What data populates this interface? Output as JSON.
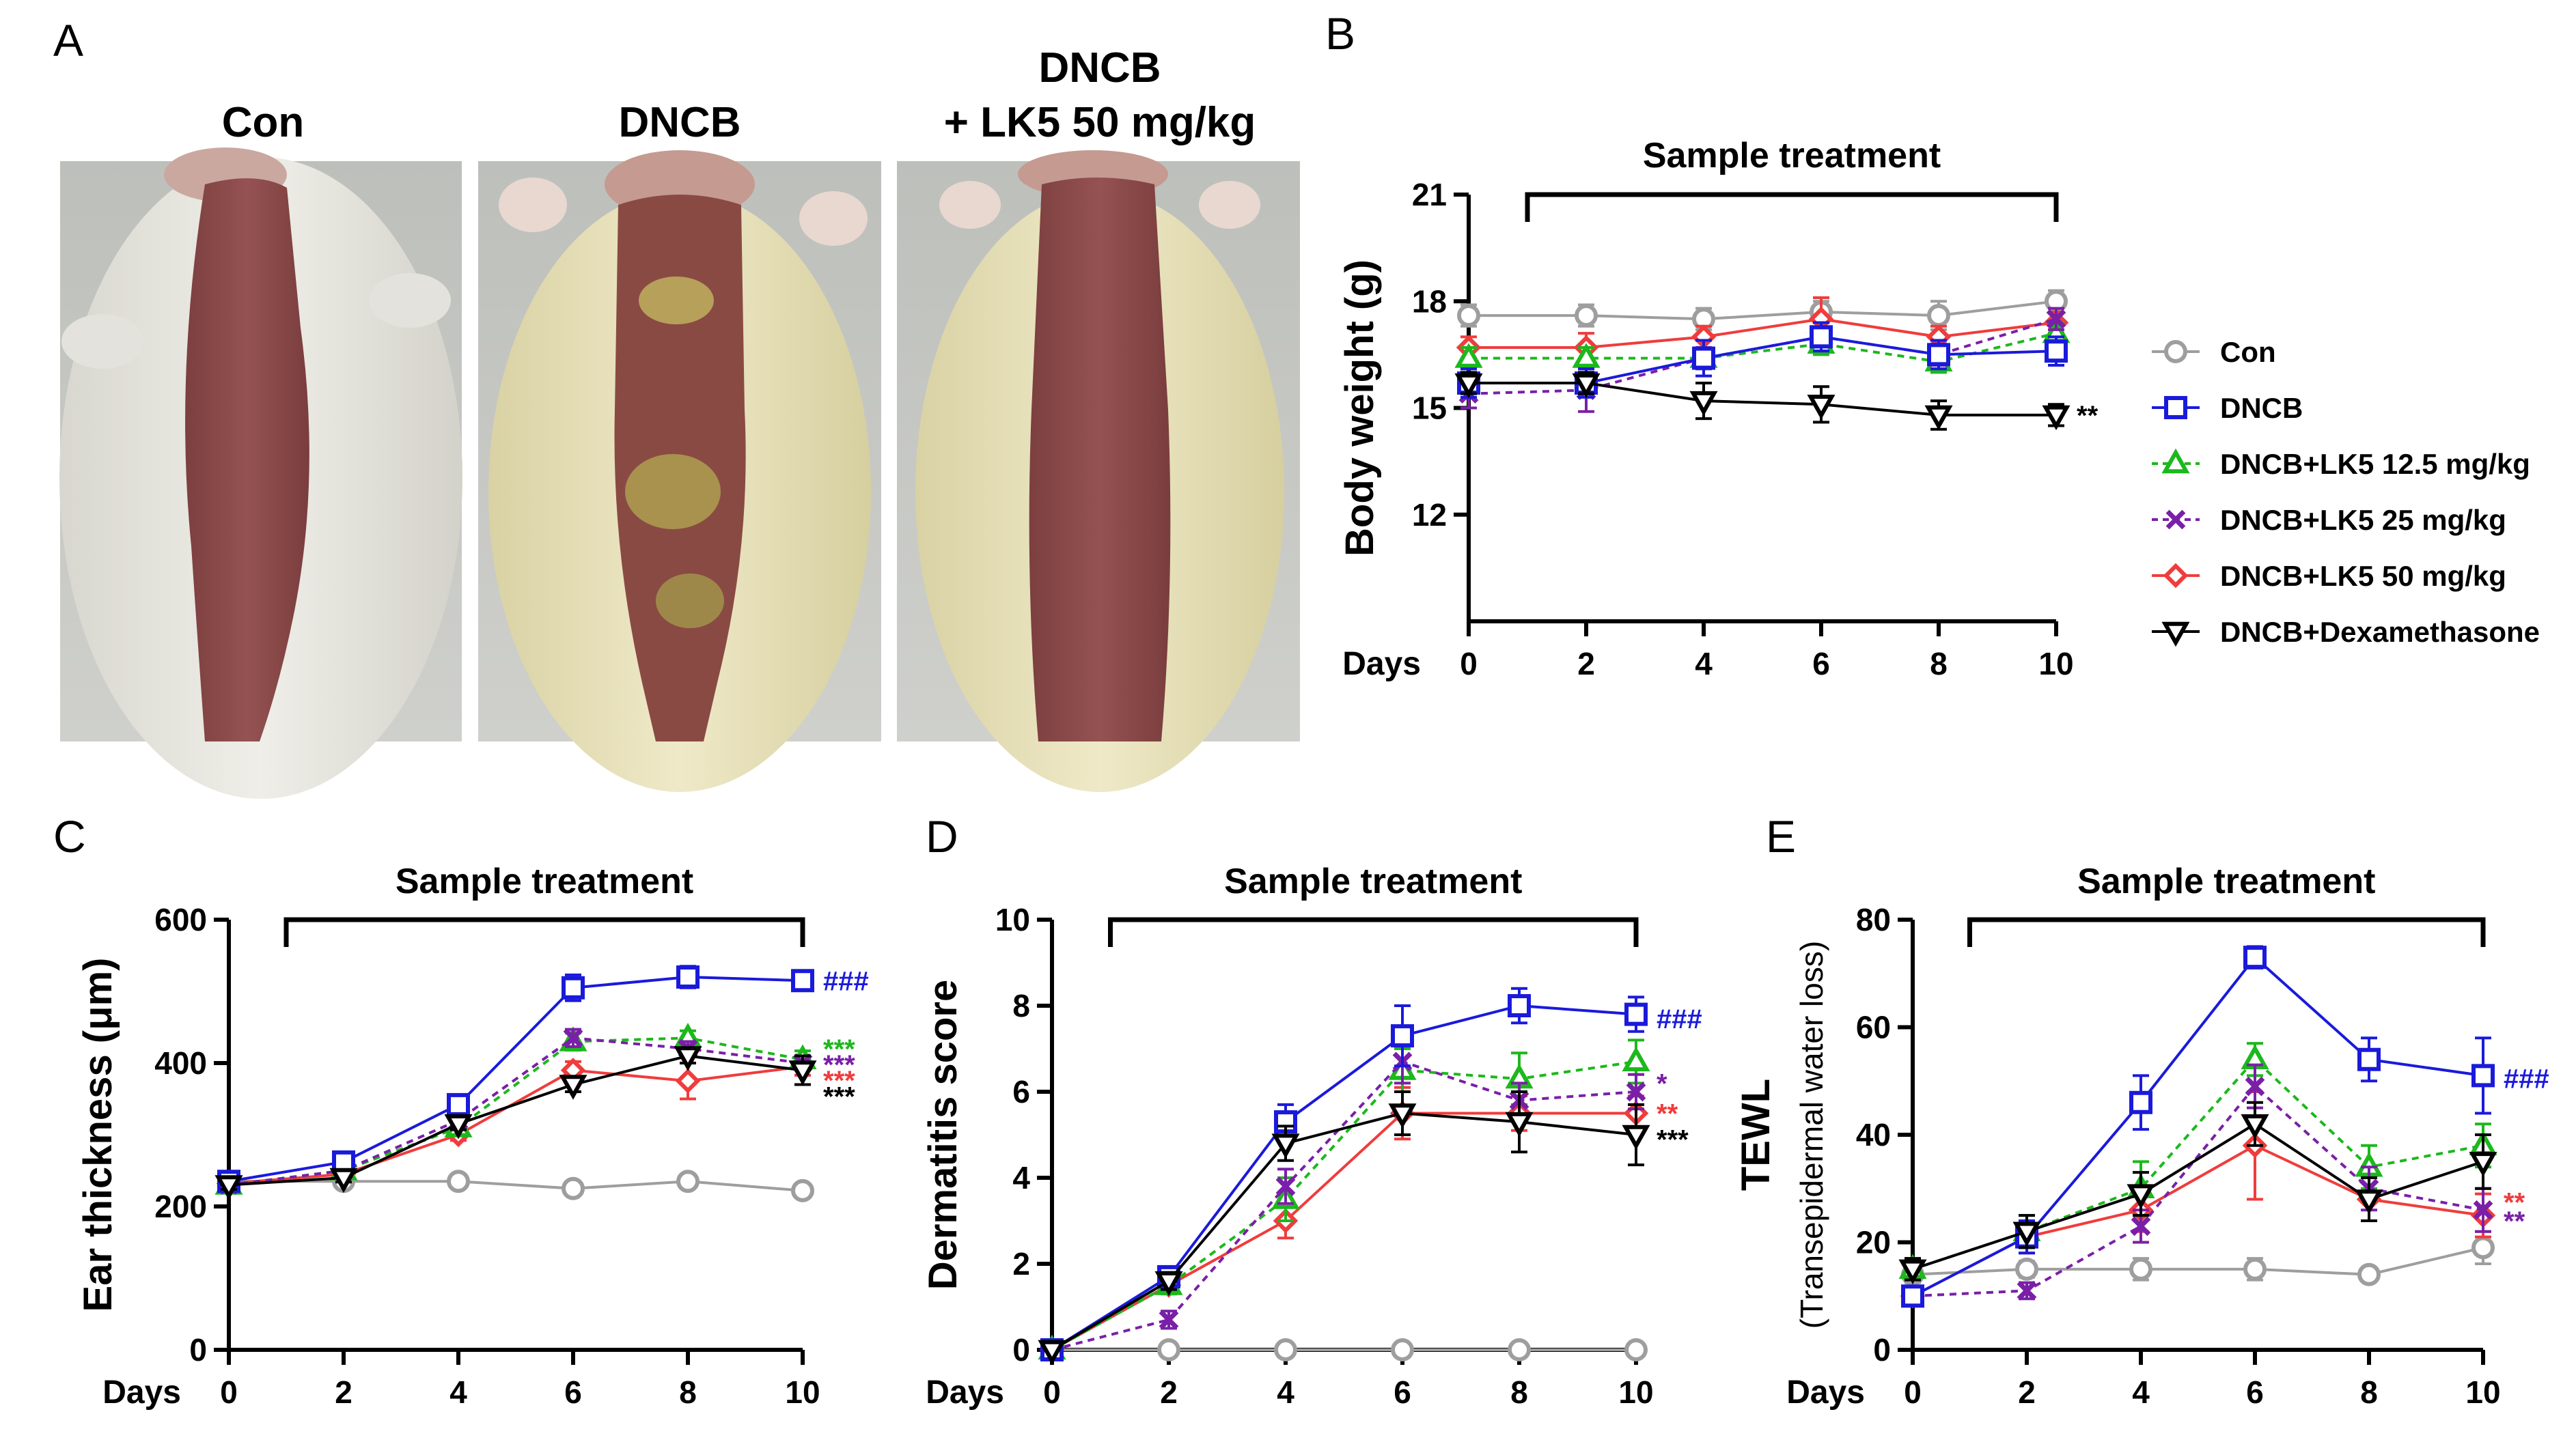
{
  "panel_labels": {
    "A": "A",
    "B": "B",
    "C": "C",
    "D": "D",
    "E": "E"
  },
  "photos": {
    "con_title": "Con",
    "dncb_title": "DNCB",
    "lk5_title_line1": "DNCB",
    "lk5_title_line2": "+ LK5 50 mg/kg"
  },
  "colors": {
    "con": "#9e9e9e",
    "dncb": "#1a1adb",
    "lk5_12": "#1cb81c",
    "lk5_25": "#7a1fa8",
    "lk5_50": "#f03c3c",
    "dexa": "#000000"
  },
  "legend": {
    "items": [
      {
        "key": "con",
        "label": "Con",
        "marker": "circle",
        "dash": false
      },
      {
        "key": "dncb",
        "label": "DNCB",
        "marker": "square",
        "dash": false
      },
      {
        "key": "lk5_12",
        "label": "DNCB+LK5 12.5 mg/kg",
        "marker": "triangle",
        "dash": true
      },
      {
        "key": "lk5_25",
        "label": "DNCB+LK5 25 mg/kg",
        "marker": "x",
        "dash": true
      },
      {
        "key": "lk5_50",
        "label": "DNCB+LK5 50 mg/kg",
        "marker": "diamond",
        "dash": false
      },
      {
        "key": "dexa",
        "label": "DNCB+Dexamethasone",
        "marker": "triangle-down",
        "dash": false
      }
    ]
  },
  "chart_data": [
    {
      "id": "B",
      "type": "line",
      "ylabel": "Body weight (g)",
      "xlabel": "Days",
      "treatment_label": "Sample treatment",
      "treatment_range": [
        1,
        10
      ],
      "xlim": [
        0,
        10
      ],
      "ylim": [
        9,
        21
      ],
      "yticks": [
        12,
        15,
        18,
        21
      ],
      "x": [
        0,
        2,
        4,
        6,
        8,
        10
      ],
      "xtick_labels": [
        "0",
        "2",
        "4",
        "6",
        "8",
        "10"
      ],
      "series": [
        {
          "key": "con",
          "name": "Con",
          "values": [
            17.6,
            17.6,
            17.5,
            17.7,
            17.6,
            18.0
          ],
          "err": [
            0.3,
            0.3,
            0.3,
            0.3,
            0.4,
            0.3
          ]
        },
        {
          "key": "lk5_50",
          "name": "DNCB+LK5 50 mg/kg",
          "values": [
            16.7,
            16.7,
            17.0,
            17.5,
            17.0,
            17.4
          ],
          "err": [
            0.3,
            0.4,
            0.3,
            0.6,
            0.3,
            0.3
          ]
        },
        {
          "key": "lk5_12",
          "name": "DNCB+LK5 12.5 mg/kg",
          "values": [
            16.4,
            16.4,
            16.4,
            16.8,
            16.3,
            17.1
          ],
          "err": [
            0.3,
            0.3,
            0.3,
            0.3,
            0.3,
            0.3
          ]
        },
        {
          "key": "lk5_25",
          "name": "DNCB+LK5 25 mg/kg",
          "values": [
            15.4,
            15.5,
            16.4,
            17.0,
            16.5,
            17.5
          ],
          "err": [
            0.4,
            0.6,
            0.3,
            0.4,
            0.3,
            0.3
          ]
        },
        {
          "key": "dncb",
          "name": "DNCB",
          "values": [
            15.7,
            15.7,
            16.4,
            17.0,
            16.5,
            16.6
          ],
          "err": [
            0.4,
            0.4,
            0.5,
            0.4,
            0.4,
            0.4
          ]
        },
        {
          "key": "dexa",
          "name": "DNCB+Dexamethasone",
          "values": [
            15.7,
            15.7,
            15.2,
            15.1,
            14.8,
            14.8
          ],
          "err": [
            0.3,
            0.3,
            0.5,
            0.5,
            0.4,
            0.3
          ]
        }
      ],
      "annotations": [
        {
          "text": "**",
          "key": "dexa",
          "value": 14.8
        }
      ]
    },
    {
      "id": "C",
      "type": "line",
      "ylabel": "Ear thickness (μm)",
      "xlabel": "Days",
      "treatment_label": "Sample treatment",
      "treatment_range": [
        1,
        10
      ],
      "xlim": [
        0,
        10
      ],
      "ylim": [
        0,
        600
      ],
      "yticks": [
        0,
        200,
        400,
        600
      ],
      "x": [
        0,
        2,
        4,
        6,
        8,
        10
      ],
      "xtick_labels": [
        "0",
        "2",
        "4",
        "6",
        "8",
        "10"
      ],
      "series": [
        {
          "key": "con",
          "name": "Con",
          "values": [
            235,
            235,
            235,
            225,
            235,
            222
          ],
          "err": [
            6,
            6,
            6,
            6,
            6,
            6
          ]
        },
        {
          "key": "lk5_50",
          "name": "DNCB+LK5 50 mg/kg",
          "values": [
            232,
            245,
            300,
            390,
            375,
            395
          ],
          "err": [
            6,
            6,
            8,
            12,
            25,
            12
          ]
        },
        {
          "key": "lk5_12",
          "name": "DNCB+LK5 12.5 mg/kg",
          "values": [
            230,
            250,
            310,
            430,
            435,
            405
          ],
          "err": [
            6,
            6,
            8,
            12,
            10,
            12
          ]
        },
        {
          "key": "lk5_25",
          "name": "DNCB+LK5 25 mg/kg",
          "values": [
            230,
            250,
            320,
            435,
            420,
            400
          ],
          "err": [
            6,
            6,
            8,
            12,
            10,
            10
          ]
        },
        {
          "key": "dncb",
          "name": "DNCB",
          "values": [
            235,
            262,
            342,
            505,
            520,
            515
          ],
          "err": [
            6,
            8,
            10,
            18,
            15,
            12
          ]
        },
        {
          "key": "dexa",
          "name": "DNCB+Dexamethasone",
          "values": [
            230,
            240,
            315,
            370,
            410,
            390
          ],
          "err": [
            6,
            6,
            8,
            10,
            10,
            20
          ]
        }
      ],
      "annotations": [
        {
          "text": "###",
          "key": "dncb",
          "value": 515
        },
        {
          "text": "***",
          "key": "lk5_12",
          "value": 420
        },
        {
          "text": "***",
          "key": "lk5_25",
          "value": 398
        },
        {
          "text": "***",
          "key": "lk5_50",
          "value": 376
        },
        {
          "text": "***",
          "key": "dexa",
          "value": 354
        }
      ]
    },
    {
      "id": "D",
      "type": "line",
      "ylabel": "Dermatitis score",
      "xlabel": "Days",
      "treatment_label": "Sample treatment",
      "treatment_range": [
        1,
        10
      ],
      "xlim": [
        0,
        10
      ],
      "ylim": [
        0,
        10
      ],
      "yticks": [
        0,
        2,
        4,
        6,
        8,
        10
      ],
      "x": [
        0,
        2,
        4,
        6,
        8,
        10
      ],
      "xtick_labels": [
        "0",
        "2",
        "4",
        "6",
        "8",
        "10"
      ],
      "series": [
        {
          "key": "con",
          "name": "Con",
          "values": [
            0,
            0,
            0,
            0,
            0,
            0
          ],
          "err": [
            0,
            0,
            0,
            0,
            0,
            0
          ]
        },
        {
          "key": "lk5_50",
          "name": "DNCB+LK5 50 mg/kg",
          "values": [
            0,
            1.5,
            3.0,
            5.5,
            5.5,
            5.5
          ],
          "err": [
            0,
            0.2,
            0.4,
            0.6,
            0.4,
            0.4
          ]
        },
        {
          "key": "lk5_12",
          "name": "DNCB+LK5 12.5 mg/kg",
          "values": [
            0,
            1.5,
            3.5,
            6.5,
            6.3,
            6.7
          ],
          "err": [
            0,
            0.2,
            0.5,
            0.5,
            0.6,
            0.5
          ]
        },
        {
          "key": "lk5_25",
          "name": "DNCB+LK5 25 mg/kg",
          "values": [
            0,
            0.7,
            3.8,
            6.7,
            5.8,
            6.0
          ],
          "err": [
            0,
            0.2,
            0.4,
            0.5,
            0.4,
            0.4
          ]
        },
        {
          "key": "dncb",
          "name": "DNCB",
          "values": [
            0,
            1.7,
            5.3,
            7.3,
            8.0,
            7.8
          ],
          "err": [
            0,
            0.2,
            0.4,
            0.7,
            0.4,
            0.4
          ]
        },
        {
          "key": "dexa",
          "name": "DNCB+Dexamethasone",
          "values": [
            0,
            1.6,
            4.8,
            5.5,
            5.3,
            5.0
          ],
          "err": [
            0,
            0.2,
            0.4,
            0.5,
            0.7,
            0.7
          ]
        }
      ],
      "annotations": [
        {
          "text": "###",
          "key": "dncb",
          "value": 7.7
        },
        {
          "text": "*",
          "key": "lk5_25",
          "value": 6.2
        },
        {
          "text": "**",
          "key": "lk5_50",
          "value": 5.5
        },
        {
          "text": "***",
          "key": "dexa",
          "value": 4.9
        }
      ]
    },
    {
      "id": "E",
      "type": "line",
      "ylabel": "TEWL",
      "ylabel_sub": "(Transepidermal water loss)",
      "xlabel": "Days",
      "treatment_label": "Sample treatment",
      "treatment_range": [
        1,
        10
      ],
      "xlim": [
        0,
        10
      ],
      "ylim": [
        0,
        80
      ],
      "yticks": [
        0,
        20,
        40,
        60,
        80
      ],
      "x": [
        0,
        2,
        4,
        6,
        8,
        10
      ],
      "xtick_labels": [
        "0",
        "2",
        "4",
        "6",
        "8",
        "10"
      ],
      "series": [
        {
          "key": "con",
          "name": "Con",
          "values": [
            14,
            15,
            15,
            15,
            14,
            19
          ],
          "err": [
            1.5,
            1.5,
            2,
            2,
            1,
            3
          ]
        },
        {
          "key": "lk5_50",
          "name": "DNCB+LK5 50 mg/kg",
          "values": [
            10,
            21,
            26,
            38,
            28,
            25
          ],
          "err": [
            1.5,
            3,
            4,
            10,
            4,
            4
          ]
        },
        {
          "key": "lk5_12",
          "name": "DNCB+LK5 12.5 mg/kg",
          "values": [
            15,
            22,
            30,
            54,
            34,
            38
          ],
          "err": [
            2,
            3,
            5,
            3,
            4,
            4
          ]
        },
        {
          "key": "lk5_25",
          "name": "DNCB+LK5 25 mg/kg",
          "values": [
            10,
            11,
            23,
            49,
            30,
            26
          ],
          "err": [
            1.5,
            1.5,
            3,
            4,
            4,
            4
          ]
        },
        {
          "key": "dncb",
          "name": "DNCB",
          "values": [
            10,
            21,
            46,
            73,
            54,
            51
          ],
          "err": [
            1.5,
            3,
            5,
            2,
            4,
            7
          ]
        },
        {
          "key": "dexa",
          "name": "DNCB+Dexamethasone",
          "values": [
            15,
            22,
            29,
            42,
            28,
            35
          ],
          "err": [
            2,
            3,
            4,
            4,
            4,
            5
          ]
        }
      ],
      "annotations": [
        {
          "text": "###",
          "key": "dncb",
          "value": 50.5
        },
        {
          "text": "**",
          "key": "lk5_50",
          "value": 27.5
        },
        {
          "text": "**",
          "key": "lk5_25",
          "value": 24
        }
      ]
    }
  ]
}
